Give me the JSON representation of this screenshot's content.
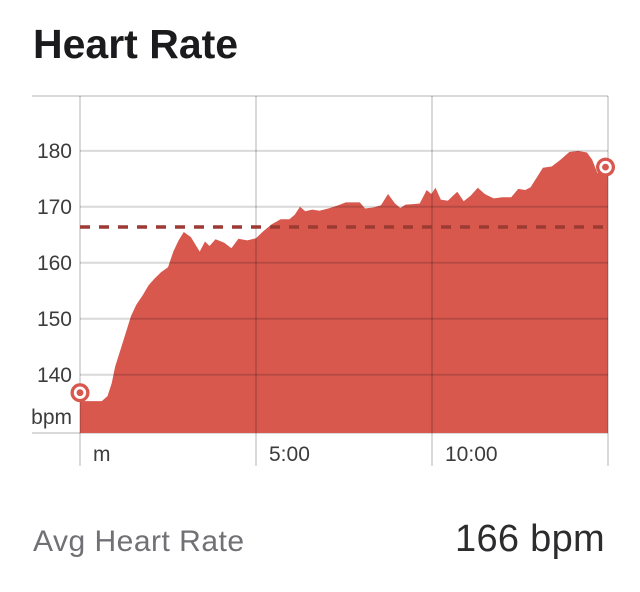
{
  "title": "Heart Rate",
  "footer": {
    "label": "Avg Heart Rate",
    "value": "166 bpm"
  },
  "colors": {
    "background": "#FFFFFF",
    "area_fill": "#D8584E",
    "avg_dash_line": "#9C3A33",
    "grid_line": "#00000026",
    "axis_text": "#3C3C3E",
    "title_text": "#1B1B1D",
    "footer_label_text": "#707075",
    "footer_value_text": "#2C2C2E",
    "marker_ring": "#FFFFFF"
  },
  "chart_data": {
    "type": "area",
    "title": "Heart Rate",
    "x_unit": "minutes",
    "y_unit_label": "bpm",
    "xlim": [
      0,
      15
    ],
    "ylim": [
      129.6,
      189.8
    ],
    "y_ticks": [
      180,
      170,
      160,
      150,
      140
    ],
    "x_ticks": [
      {
        "label": "m",
        "min": 0
      },
      {
        "label": "5:00",
        "min": 5
      },
      {
        "label": "10:00",
        "min": 10
      }
    ],
    "grid": true,
    "avg_bpm": 166,
    "start_bpm": 137,
    "end_bpm": 177,
    "points": [
      [
        0.0,
        136.8
      ],
      [
        0.08,
        135.3
      ],
      [
        0.62,
        135.3
      ],
      [
        0.78,
        136.2
      ],
      [
        0.9,
        138.5
      ],
      [
        1.0,
        141.5
      ],
      [
        1.15,
        144.5
      ],
      [
        1.3,
        147.5
      ],
      [
        1.45,
        150.5
      ],
      [
        1.6,
        152.5
      ],
      [
        1.78,
        154.2
      ],
      [
        1.95,
        156.0
      ],
      [
        2.12,
        157.2
      ],
      [
        2.3,
        158.3
      ],
      [
        2.5,
        159.2
      ],
      [
        2.65,
        162.0
      ],
      [
        2.8,
        164.0
      ],
      [
        2.95,
        165.5
      ],
      [
        3.15,
        164.6
      ],
      [
        3.4,
        162.0
      ],
      [
        3.55,
        163.8
      ],
      [
        3.68,
        163.0
      ],
      [
        3.85,
        164.2
      ],
      [
        4.1,
        163.6
      ],
      [
        4.3,
        162.6
      ],
      [
        4.5,
        164.3
      ],
      [
        4.75,
        164.0
      ],
      [
        5.0,
        164.4
      ],
      [
        5.2,
        165.6
      ],
      [
        5.45,
        166.9
      ],
      [
        5.7,
        167.8
      ],
      [
        5.95,
        167.8
      ],
      [
        6.1,
        168.6
      ],
      [
        6.25,
        170.0
      ],
      [
        6.4,
        169.2
      ],
      [
        6.6,
        169.5
      ],
      [
        6.8,
        169.3
      ],
      [
        7.05,
        169.7
      ],
      [
        7.3,
        170.2
      ],
      [
        7.55,
        170.8
      ],
      [
        7.95,
        170.8
      ],
      [
        8.1,
        169.7
      ],
      [
        8.35,
        169.9
      ],
      [
        8.55,
        170.3
      ],
      [
        8.75,
        172.3
      ],
      [
        8.95,
        170.6
      ],
      [
        9.1,
        169.8
      ],
      [
        9.25,
        170.4
      ],
      [
        9.5,
        170.5
      ],
      [
        9.65,
        170.6
      ],
      [
        9.85,
        173.0
      ],
      [
        9.98,
        172.3
      ],
      [
        10.1,
        173.4
      ],
      [
        10.25,
        171.3
      ],
      [
        10.45,
        171.1
      ],
      [
        10.6,
        172.0
      ],
      [
        10.72,
        172.7
      ],
      [
        10.9,
        171.0
      ],
      [
        11.1,
        172.0
      ],
      [
        11.3,
        173.4
      ],
      [
        11.5,
        172.3
      ],
      [
        11.75,
        171.5
      ],
      [
        12.0,
        171.7
      ],
      [
        12.25,
        171.7
      ],
      [
        12.45,
        173.2
      ],
      [
        12.65,
        173.0
      ],
      [
        12.8,
        173.5
      ],
      [
        13.15,
        177.0
      ],
      [
        13.4,
        177.2
      ],
      [
        13.65,
        178.4
      ],
      [
        13.9,
        179.8
      ],
      [
        14.15,
        180.0
      ],
      [
        14.4,
        179.7
      ],
      [
        14.55,
        178.4
      ],
      [
        14.7,
        176.0
      ],
      [
        14.8,
        176.4
      ],
      [
        14.93,
        177.1
      ]
    ]
  }
}
